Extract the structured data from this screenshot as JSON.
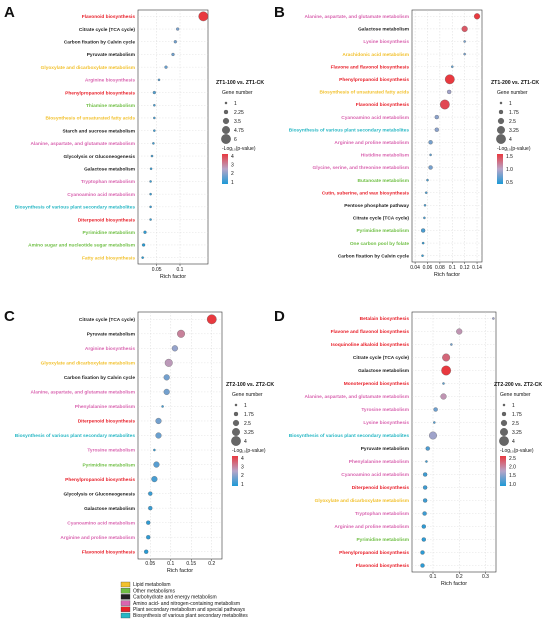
{
  "category_colors": {
    "Lipid metabolism": "#f2c12e",
    "Other metabolisms": "#6fbf44",
    "Carbohydrate and energy metabolism": "#222222",
    "Amino acid- and nitrogen-containing metabolism": "#d965b0",
    "Plant secondary metabolism and special pathways": "#e8202a",
    "Biosynthesis of various plant secondary metabolites": "#27b7c4"
  },
  "category_legend": [
    "Lipid metabolism",
    "Other metabolisms",
    "Carbohydrate and energy metabolism",
    "Amino acid- and nitrogen-containing metabolism",
    "Plant secondary metabolism and special pathways",
    "Biosynthesis of various plant secondary metabolites"
  ],
  "chart_data": [
    {
      "type": "scatter",
      "panel": "A",
      "xlabel": "Rich factor",
      "xticks": [
        0.05,
        0.1
      ],
      "xlim": [
        0.01,
        0.16
      ],
      "legend_title": "ZT1-100 vs. ZT1-CK",
      "size_title": "Gene number",
      "size_values": [
        "1",
        "2.25",
        "3.5",
        "4.75",
        "6"
      ],
      "size_range": [
        1,
        6
      ],
      "color_title": "-Log₁₀(p-value)",
      "color_ticks": [
        "4",
        "3",
        "2",
        "1"
      ],
      "color_range": [
        0.5,
        4.2
      ],
      "points": [
        {
          "label": "Flavonoid biosynthesis",
          "category": "Plant secondary metabolism and special pathways",
          "x": 0.15,
          "size": 6,
          "color": 4.2
        },
        {
          "label": "Citrate cycle (TCA cycle)",
          "category": "Carbohydrate and energy metabolism",
          "x": 0.095,
          "size": 1.5,
          "color": 1.6
        },
        {
          "label": "Carbon fixation by Calvin cycle",
          "category": "Carbohydrate and energy metabolism",
          "x": 0.09,
          "size": 1.5,
          "color": 1.5
        },
        {
          "label": "Pyruvate metabolism",
          "category": "Carbohydrate and energy metabolism",
          "x": 0.085,
          "size": 1.5,
          "color": 1.5
        },
        {
          "label": "Glyoxylate and dicarboxylate metabolism",
          "category": "Lipid metabolism",
          "x": 0.07,
          "size": 1.5,
          "color": 1.4
        },
        {
          "label": "Arginine biosynthesis",
          "category": "Amino acid- and nitrogen-containing metabolism",
          "x": 0.055,
          "size": 1,
          "color": 1.2
        },
        {
          "label": "Phenylpropanoid biosynthesis",
          "category": "Plant secondary metabolism and special pathways",
          "x": 0.045,
          "size": 1.5,
          "color": 1.1
        },
        {
          "label": "Thiamine metabolism",
          "category": "Other metabolisms",
          "x": 0.045,
          "size": 1,
          "color": 1.0
        },
        {
          "label": "Biosynthesis of unsaturated fatty acids",
          "category": "Lipid metabolism",
          "x": 0.045,
          "size": 1,
          "color": 1.0
        },
        {
          "label": "Starch and sucrose metabolism",
          "category": "Carbohydrate and energy metabolism",
          "x": 0.045,
          "size": 1,
          "color": 0.9
        },
        {
          "label": "Alanine, aspartate, and glutamate metabolism",
          "category": "Amino acid- and nitrogen-containing metabolism",
          "x": 0.043,
          "size": 1,
          "color": 0.9
        },
        {
          "label": "Glycolysis or Gluconeogenesis",
          "category": "Carbohydrate and energy metabolism",
          "x": 0.04,
          "size": 1,
          "color": 0.9
        },
        {
          "label": "Galactose metabolism",
          "category": "Carbohydrate and energy metabolism",
          "x": 0.038,
          "size": 1,
          "color": 0.8
        },
        {
          "label": "Tryptophan metabolism",
          "category": "Amino acid- and nitrogen-containing metabolism",
          "x": 0.037,
          "size": 1,
          "color": 0.8
        },
        {
          "label": "Cyanoamino acid metabolism",
          "category": "Amino acid- and nitrogen-containing metabolism",
          "x": 0.037,
          "size": 1,
          "color": 0.8
        },
        {
          "label": "Biosynthesis of various plant secondary metabolites",
          "category": "Biosynthesis of various plant secondary metabolites",
          "x": 0.037,
          "size": 1,
          "color": 0.8
        },
        {
          "label": "Diterpenoid biosynthesis",
          "category": "Plant secondary metabolism and special pathways",
          "x": 0.037,
          "size": 1,
          "color": 0.8
        },
        {
          "label": "Pyrimidine metabolism",
          "category": "Other metabolisms",
          "x": 0.025,
          "size": 1.5,
          "color": 0.7
        },
        {
          "label": "Amino sugar and nucleotide sugar metabolism",
          "category": "Other metabolisms",
          "x": 0.022,
          "size": 1.5,
          "color": 0.6
        },
        {
          "label": "Fatty acid biosynthesis",
          "category": "Lipid metabolism",
          "x": 0.02,
          "size": 1,
          "color": 0.6
        }
      ]
    },
    {
      "type": "scatter",
      "panel": "B",
      "xlabel": "Rich factor",
      "xticks": [
        0.04,
        0.06,
        0.08,
        0.1,
        0.12,
        0.14
      ],
      "xlim": [
        0.035,
        0.148
      ],
      "legend_title": "ZT1-200 vs. ZT1-CK",
      "size_title": "Gene number",
      "size_values": [
        "1",
        "1.75",
        "2.5",
        "3.25",
        "4"
      ],
      "size_range": [
        1,
        4
      ],
      "color_title": "-Log₁₀(p-value)",
      "color_ticks": [
        "1.5",
        "1.0",
        "0.5"
      ],
      "color_range": [
        0.4,
        1.8
      ],
      "points": [
        {
          "label": "Alanine, aspartate, and glutamate metabolism",
          "category": "Amino acid- and nitrogen-containing metabolism",
          "x": 0.14,
          "size": 2.5,
          "color": 1.8
        },
        {
          "label": "Galactose metabolism",
          "category": "Carbohydrate and energy metabolism",
          "x": 0.12,
          "size": 2.5,
          "color": 1.6
        },
        {
          "label": "Lysine biosynthesis",
          "category": "Amino acid- and nitrogen-containing metabolism",
          "x": 0.12,
          "size": 1,
          "color": 0.8
        },
        {
          "label": "Arachidonic acid metabolism",
          "category": "Lipid metabolism",
          "x": 0.12,
          "size": 1,
          "color": 0.8
        },
        {
          "label": "Flavone and flavonol biosynthesis",
          "category": "Plant secondary metabolism and special pathways",
          "x": 0.1,
          "size": 1,
          "color": 0.7
        },
        {
          "label": "Phenylpropanoid biosynthesis",
          "category": "Plant secondary metabolism and special pathways",
          "x": 0.096,
          "size": 4,
          "color": 1.8
        },
        {
          "label": "Biosynthesis of unsaturated fatty acids",
          "category": "Lipid metabolism",
          "x": 0.095,
          "size": 1.75,
          "color": 1.0
        },
        {
          "label": "Flavonoid biosynthesis",
          "category": "Plant secondary metabolism and special pathways",
          "x": 0.088,
          "size": 4,
          "color": 1.7
        },
        {
          "label": "Cyanoamino acid metabolism",
          "category": "Amino acid- and nitrogen-containing metabolism",
          "x": 0.075,
          "size": 1.75,
          "color": 0.9
        },
        {
          "label": "Biosynthesis of various plant secondary metabolites",
          "category": "Biosynthesis of various plant secondary metabolites",
          "x": 0.075,
          "size": 1.75,
          "color": 0.9
        },
        {
          "label": "Arginine and proline metabolism",
          "category": "Amino acid- and nitrogen-containing metabolism",
          "x": 0.065,
          "size": 1.75,
          "color": 0.8
        },
        {
          "label": "Histidine metabolism",
          "category": "Amino acid- and nitrogen-containing metabolism",
          "x": 0.065,
          "size": 1,
          "color": 0.7
        },
        {
          "label": "Glycine, serine, and threonine metabolism",
          "category": "Amino acid- and nitrogen-containing metabolism",
          "x": 0.065,
          "size": 1.75,
          "color": 0.8
        },
        {
          "label": "Butanoate metabolism",
          "category": "Other metabolisms",
          "x": 0.06,
          "size": 1,
          "color": 0.6
        },
        {
          "label": "Cutin, suberine, and wax biosynthesis",
          "category": "Plant secondary metabolism and special pathways",
          "x": 0.058,
          "size": 1,
          "color": 0.6
        },
        {
          "label": "Pentose phosphate pathway",
          "category": "Carbohydrate and energy metabolism",
          "x": 0.056,
          "size": 1,
          "color": 0.6
        },
        {
          "label": "Citrate cycle (TCA cycle)",
          "category": "Carbohydrate and energy metabolism",
          "x": 0.055,
          "size": 1,
          "color": 0.6
        },
        {
          "label": "Pyrimidine metabolism",
          "category": "Other metabolisms",
          "x": 0.053,
          "size": 1.75,
          "color": 0.6
        },
        {
          "label": "One carbon pool by folate",
          "category": "Other metabolisms",
          "x": 0.053,
          "size": 1,
          "color": 0.5
        },
        {
          "label": "Carbon fixation by Calvin cycle",
          "category": "Carbohydrate and energy metabolism",
          "x": 0.052,
          "size": 1,
          "color": 0.5
        }
      ]
    },
    {
      "type": "scatter",
      "panel": "C",
      "xlabel": "Rich factor",
      "xticks": [
        0.05,
        0.1,
        0.15,
        0.2
      ],
      "xlim": [
        0.02,
        0.225
      ],
      "legend_title": "ZT2-100 vs. ZT2-CK",
      "size_title": "Gene number",
      "size_values": [
        "1",
        "1.75",
        "2.5",
        "3.25",
        "4"
      ],
      "size_range": [
        1,
        4
      ],
      "color_title": "-Log₁₀(p-value)",
      "color_ticks": [
        "4",
        "3",
        "2",
        "1"
      ],
      "color_range": [
        0.6,
        4.2
      ],
      "points": [
        {
          "label": "Citrate cycle (TCA cycle)",
          "category": "Carbohydrate and energy metabolism",
          "x": 0.2,
          "size": 4,
          "color": 4.2
        },
        {
          "label": "Pyruvate metabolism",
          "category": "Carbohydrate and energy metabolism",
          "x": 0.125,
          "size": 3.25,
          "color": 3.0
        },
        {
          "label": "Arginine biosynthesis",
          "category": "Amino acid- and nitrogen-containing metabolism",
          "x": 0.11,
          "size": 2.5,
          "color": 2.0
        },
        {
          "label": "Glyoxylate and dicarboxylate metabolism",
          "category": "Lipid metabolism",
          "x": 0.095,
          "size": 3.25,
          "color": 2.6
        },
        {
          "label": "Carbon fixation by Calvin cycle",
          "category": "Carbohydrate and energy metabolism",
          "x": 0.09,
          "size": 2.5,
          "color": 1.6
        },
        {
          "label": "Alanine, aspartate, and glutamate metabolism",
          "category": "Amino acid- and nitrogen-containing metabolism",
          "x": 0.09,
          "size": 2.5,
          "color": 1.6
        },
        {
          "label": "Phenylalanine metabolism",
          "category": "Amino acid- and nitrogen-containing metabolism",
          "x": 0.08,
          "size": 1,
          "color": 1.0
        },
        {
          "label": "Diterpenoid biosynthesis",
          "category": "Plant secondary metabolism and special pathways",
          "x": 0.07,
          "size": 2.5,
          "color": 1.6
        },
        {
          "label": "Biosynthesis of various plant secondary metabolites",
          "category": "Biosynthesis of various plant secondary metabolites",
          "x": 0.07,
          "size": 2.5,
          "color": 1.5
        },
        {
          "label": "Tyrosine metabolism",
          "category": "Amino acid- and nitrogen-containing metabolism",
          "x": 0.06,
          "size": 1,
          "color": 0.9
        },
        {
          "label": "Pyrimidine metabolism",
          "category": "Other metabolisms",
          "x": 0.065,
          "size": 2.5,
          "color": 1.3
        },
        {
          "label": "Phenylpropanoid biosynthesis",
          "category": "Plant secondary metabolism and special pathways",
          "x": 0.06,
          "size": 2.5,
          "color": 1.1
        },
        {
          "label": "Glycolysis or Gluconeogenesis",
          "category": "Carbohydrate and energy metabolism",
          "x": 0.05,
          "size": 1.75,
          "color": 0.9
        },
        {
          "label": "Galactose metabolism",
          "category": "Carbohydrate and energy metabolism",
          "x": 0.05,
          "size": 1.75,
          "color": 0.9
        },
        {
          "label": "Cyanoamino acid metabolism",
          "category": "Amino acid- and nitrogen-containing metabolism",
          "x": 0.045,
          "size": 1.75,
          "color": 0.8
        },
        {
          "label": "Arginine and proline metabolism",
          "category": "Amino acid- and nitrogen-containing metabolism",
          "x": 0.045,
          "size": 1.75,
          "color": 0.8
        },
        {
          "label": "Flavonoid biosynthesis",
          "category": "Plant secondary metabolism and special pathways",
          "x": 0.04,
          "size": 1.75,
          "color": 0.7
        }
      ]
    },
    {
      "type": "scatter",
      "panel": "D",
      "xlabel": "Rich factor",
      "xticks": [
        0.1,
        0.2,
        0.3
      ],
      "xlim": [
        0.02,
        0.34
      ],
      "legend_title": "ZT2-200 vs. ZT2-CK",
      "size_title": "Gene number",
      "size_values": [
        "1",
        "1.75",
        "2.5",
        "3.25",
        "4"
      ],
      "size_range": [
        1,
        4
      ],
      "color_title": "-Log₁₀(p-value)",
      "color_ticks": [
        "2.5",
        "2.0",
        "1.5",
        "1.0"
      ],
      "color_range": [
        0.7,
        2.6
      ],
      "points": [
        {
          "label": "Betalain biosynthesis",
          "category": "Plant secondary metabolism and special pathways",
          "x": 0.33,
          "size": 1,
          "color": 1.5
        },
        {
          "label": "Flavone and flavonol biosynthesis",
          "category": "Plant secondary metabolism and special pathways",
          "x": 0.2,
          "size": 2.5,
          "color": 1.8
        },
        {
          "label": "Isoquinoline alkaloid biosynthesis",
          "category": "Plant secondary metabolism and special pathways",
          "x": 0.17,
          "size": 1,
          "color": 1.2
        },
        {
          "label": "Citrate cycle (TCA cycle)",
          "category": "Carbohydrate and energy metabolism",
          "x": 0.15,
          "size": 3.25,
          "color": 2.2
        },
        {
          "label": "Galactose metabolism",
          "category": "Carbohydrate and energy metabolism",
          "x": 0.15,
          "size": 4,
          "color": 2.6
        },
        {
          "label": "Monoterpenoid biosynthesis",
          "category": "Plant secondary metabolism and special pathways",
          "x": 0.14,
          "size": 1,
          "color": 1.1
        },
        {
          "label": "Alanine, aspartate, and glutamate metabolism",
          "category": "Amino acid- and nitrogen-containing metabolism",
          "x": 0.14,
          "size": 2.5,
          "color": 1.8
        },
        {
          "label": "Tyrosine metabolism",
          "category": "Amino acid- and nitrogen-containing metabolism",
          "x": 0.11,
          "size": 1.75,
          "color": 1.2
        },
        {
          "label": "Lysine biosynthesis",
          "category": "Amino acid- and nitrogen-containing metabolism",
          "x": 0.105,
          "size": 1,
          "color": 1.0
        },
        {
          "label": "Biosynthesis of various plant secondary metabolites",
          "category": "Biosynthesis of various plant secondary metabolites",
          "x": 0.1,
          "size": 3.25,
          "color": 1.5
        },
        {
          "label": "Pyruvate metabolism",
          "category": "Carbohydrate and energy metabolism",
          "x": 0.08,
          "size": 1.75,
          "color": 1.0
        },
        {
          "label": "Phenylalanine metabolism",
          "category": "Amino acid- and nitrogen-containing metabolism",
          "x": 0.075,
          "size": 1,
          "color": 0.9
        },
        {
          "label": "Cyanoamino acid metabolism",
          "category": "Amino acid- and nitrogen-containing metabolism",
          "x": 0.07,
          "size": 1.75,
          "color": 0.9
        },
        {
          "label": "Diterpenoid biosynthesis",
          "category": "Plant secondary metabolism and special pathways",
          "x": 0.07,
          "size": 1.75,
          "color": 0.9
        },
        {
          "label": "Glyoxylate and dicarboxylate metabolism",
          "category": "Lipid metabolism",
          "x": 0.07,
          "size": 1.75,
          "color": 0.9
        },
        {
          "label": "Tryptophan metabolism",
          "category": "Amino acid- and nitrogen-containing metabolism",
          "x": 0.068,
          "size": 1.75,
          "color": 0.9
        },
        {
          "label": "Arginine and proline metabolism",
          "category": "Amino acid- and nitrogen-containing metabolism",
          "x": 0.065,
          "size": 1.75,
          "color": 0.8
        },
        {
          "label": "Pyrimidine metabolism",
          "category": "Other metabolisms",
          "x": 0.065,
          "size": 1.75,
          "color": 0.8
        },
        {
          "label": "Phenylpropanoid biosynthesis",
          "category": "Plant secondary metabolism and special pathways",
          "x": 0.06,
          "size": 1.75,
          "color": 0.8
        },
        {
          "label": "Flavonoid biosynthesis",
          "category": "Plant secondary metabolism and special pathways",
          "x": 0.06,
          "size": 1.75,
          "color": 0.8
        }
      ]
    }
  ]
}
